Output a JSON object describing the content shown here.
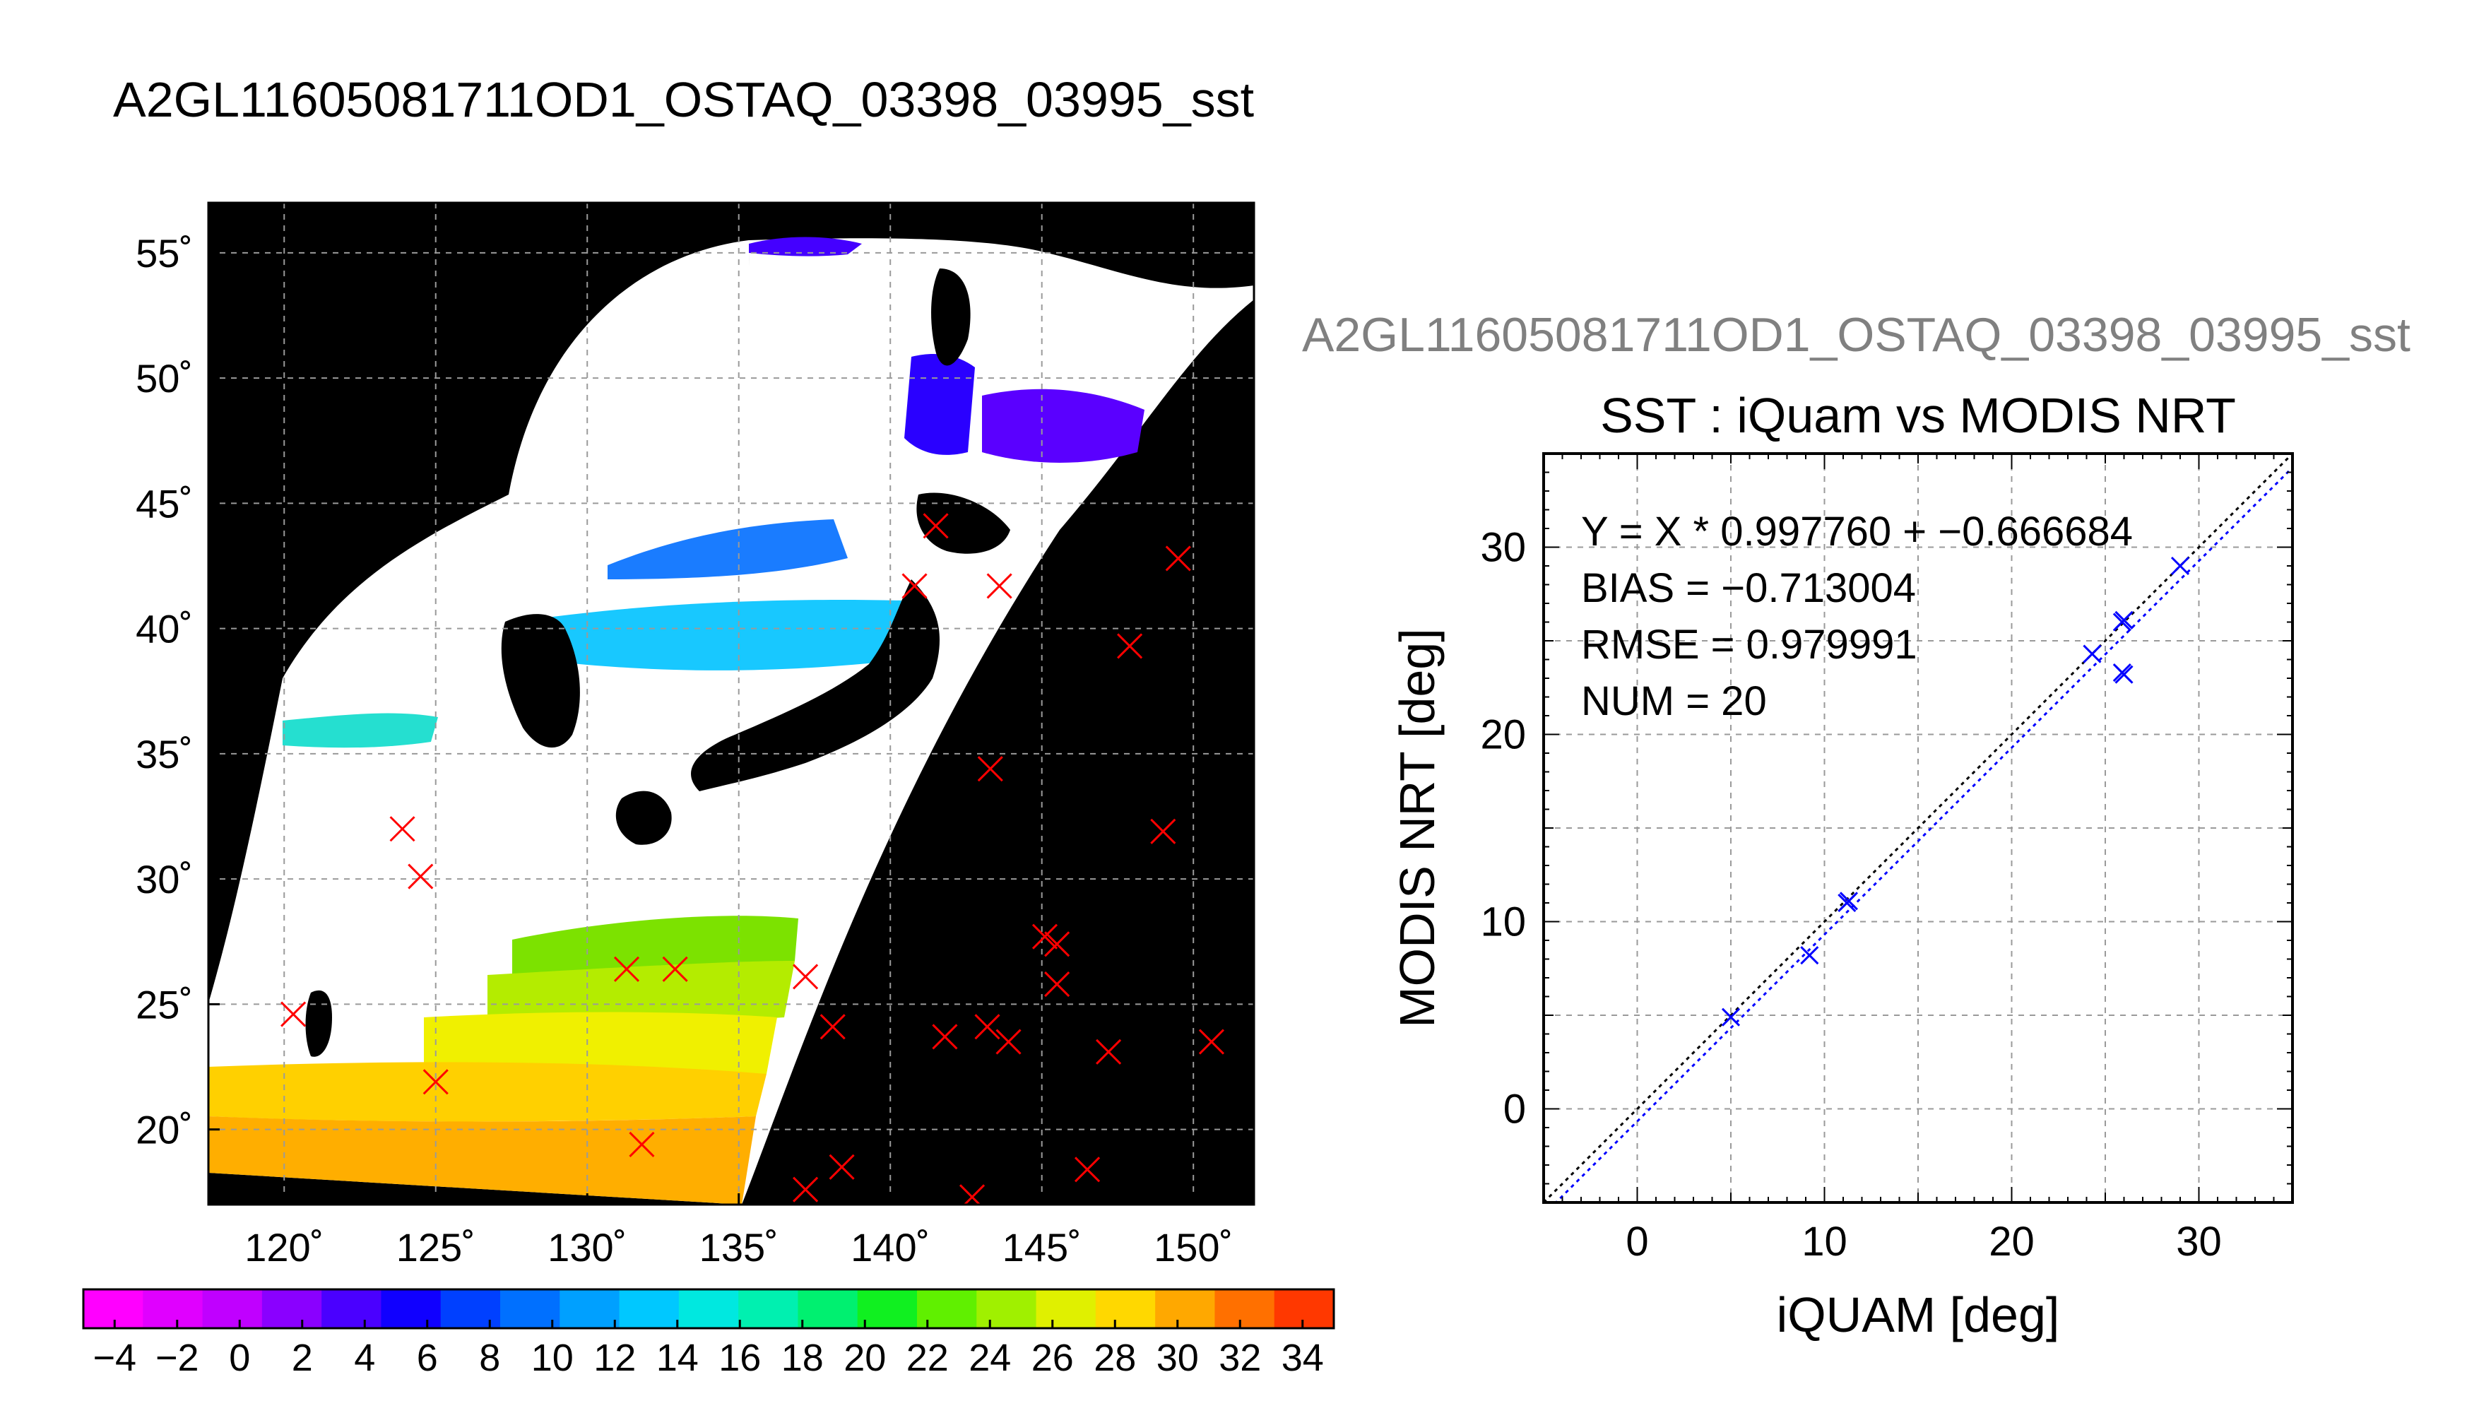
{
  "page_title": "A2GL11605081711OD1_OSTAQ_03398_03995_sst",
  "colors": {
    "background": "#ffffff",
    "map_background": "#000000",
    "land": "#ffffff",
    "match_marker": "#ff0000",
    "scatter_marker": "#0000ff",
    "identity_line": "#000000",
    "fit_line": "#0000ff",
    "grid": "#9a9a9a",
    "subtitle_text": "#808080"
  },
  "chart_data": [
    {
      "type": "scatter",
      "map": true,
      "xlim": [
        117.5,
        152
      ],
      "ylim": [
        17,
        57
      ],
      "x_ticks": [
        120,
        125,
        130,
        135,
        140,
        145,
        150
      ],
      "y_ticks": [
        20,
        25,
        30,
        35,
        40,
        45,
        50,
        55
      ],
      "x_tick_labels": [
        "120˚",
        "125˚",
        "130˚",
        "135˚",
        "140˚",
        "145˚",
        "150˚"
      ],
      "y_tick_labels": [
        "20˚",
        "25˚",
        "30˚",
        "35˚",
        "40˚",
        "45˚",
        "50˚",
        "55˚"
      ],
      "grid": true,
      "sst_field_colors": [
        "#2a00ff",
        "#1a7cff",
        "#18c8ff",
        "#25dfd0",
        "#7ce200",
        "#b4ec00",
        "#f0f000",
        "#ffd000",
        "#ffae00"
      ],
      "match_points": [
        {
          "x": 120.3,
          "y": 24.6
        },
        {
          "x": 123.9,
          "y": 32.0
        },
        {
          "x": 124.5,
          "y": 30.1
        },
        {
          "x": 125.0,
          "y": 21.9
        },
        {
          "x": 131.3,
          "y": 26.4
        },
        {
          "x": 132.9,
          "y": 26.4
        },
        {
          "x": 131.8,
          "y": 19.4
        },
        {
          "x": 137.2,
          "y": 26.1
        },
        {
          "x": 138.1,
          "y": 24.1
        },
        {
          "x": 138.4,
          "y": 18.5
        },
        {
          "x": 137.2,
          "y": 17.6
        },
        {
          "x": 141.8,
          "y": 23.7
        },
        {
          "x": 143.2,
          "y": 24.1
        },
        {
          "x": 143.9,
          "y": 23.5
        },
        {
          "x": 142.7,
          "y": 17.3
        },
        {
          "x": 145.1,
          "y": 27.7
        },
        {
          "x": 145.5,
          "y": 27.4
        },
        {
          "x": 145.5,
          "y": 25.8
        },
        {
          "x": 147.2,
          "y": 23.1
        },
        {
          "x": 146.5,
          "y": 18.4
        },
        {
          "x": 149.0,
          "y": 31.9
        },
        {
          "x": 143.3,
          "y": 34.4
        },
        {
          "x": 147.9,
          "y": 39.3
        },
        {
          "x": 149.5,
          "y": 42.8
        },
        {
          "x": 150.6,
          "y": 23.5
        },
        {
          "x": 141.5,
          "y": 44.1
        },
        {
          "x": 140.8,
          "y": 41.7
        },
        {
          "x": 143.6,
          "y": 41.7
        }
      ],
      "colorbar": {
        "min": -5,
        "max": 35,
        "tick_labels": [
          "-4",
          "-2",
          "0",
          "2",
          "4",
          "6",
          "8",
          "10",
          "12",
          "14",
          "16",
          "18",
          "20",
          "22",
          "24",
          "26",
          "28",
          "30",
          "32",
          "34"
        ],
        "colors": [
          "#ff00ff",
          "#e000ff",
          "#c000ff",
          "#8a00ff",
          "#4a00ff",
          "#1000ff",
          "#0040ff",
          "#0070ff",
          "#00a0ff",
          "#00c8ff",
          "#00e8e0",
          "#00f0b0",
          "#00f070",
          "#10f020",
          "#60f000",
          "#a0f000",
          "#e0f000",
          "#ffd800",
          "#ffa800",
          "#ff7000",
          "#ff3800"
        ]
      }
    },
    {
      "type": "scatter",
      "subtitle": "A2GL11605081711OD1_OSTAQ_03398_03995_sst",
      "title": "SST : iQuam vs MODIS NRT",
      "xlabel": "iQUAM [deg]",
      "ylabel": "MODIS NRT [deg]",
      "xlim": [
        -5,
        35
      ],
      "ylim": [
        -5,
        35
      ],
      "x_ticks": [
        0,
        10,
        20,
        30
      ],
      "y_ticks": [
        0,
        10,
        20,
        30
      ],
      "x_tick_labels": [
        "0",
        "10",
        "20",
        "30"
      ],
      "y_tick_labels": [
        "0",
        "10",
        "20",
        "30"
      ],
      "grid": true,
      "annotations": [
        "Y = X * 0.997760 + -0.666684",
        "BIAS = -0.713004",
        "RMSE = 0.979991",
        "NUM = 20"
      ],
      "fit": {
        "slope": 0.99776,
        "intercept": -0.666684
      },
      "points": [
        {
          "x": 5.0,
          "y": 4.9
        },
        {
          "x": 9.2,
          "y": 8.2
        },
        {
          "x": 11.2,
          "y": 11.0
        },
        {
          "x": 11.3,
          "y": 11.1
        },
        {
          "x": 24.3,
          "y": 24.3
        },
        {
          "x": 25.9,
          "y": 26.0
        },
        {
          "x": 26.0,
          "y": 26.1
        },
        {
          "x": 25.9,
          "y": 23.3
        },
        {
          "x": 26.0,
          "y": 23.2
        },
        {
          "x": 29.0,
          "y": 29.0
        }
      ]
    }
  ]
}
